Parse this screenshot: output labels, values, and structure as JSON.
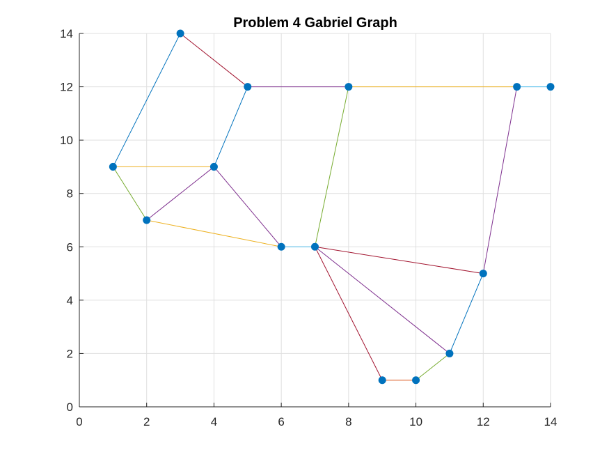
{
  "chart_data": {
    "type": "scatter",
    "title": "Problem 4 Gabriel Graph",
    "xlabel": "",
    "ylabel": "",
    "xlim": [
      0,
      14
    ],
    "ylim": [
      0,
      14
    ],
    "xticks": [
      0,
      2,
      4,
      6,
      8,
      10,
      12,
      14
    ],
    "yticks": [
      0,
      2,
      4,
      6,
      8,
      10,
      12,
      14
    ],
    "grid": true,
    "box": "left-bottom",
    "marker_color": "#0072BD",
    "points": [
      [
        1,
        9
      ],
      [
        2,
        7
      ],
      [
        3,
        14
      ],
      [
        4,
        9
      ],
      [
        5,
        12
      ],
      [
        6,
        6
      ],
      [
        7,
        6
      ],
      [
        8,
        12
      ],
      [
        9,
        1
      ],
      [
        10,
        1
      ],
      [
        11,
        2
      ],
      [
        12,
        5
      ],
      [
        13,
        12
      ],
      [
        14,
        12
      ]
    ],
    "edges": [
      {
        "from": [
          3,
          14
        ],
        "to": [
          1,
          9
        ],
        "color": "#0072BD"
      },
      {
        "from": [
          3,
          14
        ],
        "to": [
          5,
          12
        ],
        "color": "#A2142F"
      },
      {
        "from": [
          5,
          12
        ],
        "to": [
          8,
          12
        ],
        "color": "#7E2F8E"
      },
      {
        "from": [
          5,
          12
        ],
        "to": [
          4,
          9
        ],
        "color": "#0072BD"
      },
      {
        "from": [
          8,
          12
        ],
        "to": [
          13,
          12
        ],
        "color": "#EDB120"
      },
      {
        "from": [
          13,
          12
        ],
        "to": [
          14,
          12
        ],
        "color": "#4DBEEE"
      },
      {
        "from": [
          1,
          9
        ],
        "to": [
          4,
          9
        ],
        "color": "#EDB120"
      },
      {
        "from": [
          1,
          9
        ],
        "to": [
          2,
          7
        ],
        "color": "#77AC30"
      },
      {
        "from": [
          2,
          7
        ],
        "to": [
          4,
          9
        ],
        "color": "#7E2F8E"
      },
      {
        "from": [
          2,
          7
        ],
        "to": [
          6,
          6
        ],
        "color": "#EDB120"
      },
      {
        "from": [
          4,
          9
        ],
        "to": [
          6,
          6
        ],
        "color": "#7E2F8E"
      },
      {
        "from": [
          6,
          6
        ],
        "to": [
          7,
          6
        ],
        "color": "#4DBEEE"
      },
      {
        "from": [
          7,
          6
        ],
        "to": [
          8,
          12
        ],
        "color": "#77AC30"
      },
      {
        "from": [
          7,
          6
        ],
        "to": [
          12,
          5
        ],
        "color": "#A2142F"
      },
      {
        "from": [
          7,
          6
        ],
        "to": [
          11,
          2
        ],
        "color": "#7E2F8E"
      },
      {
        "from": [
          7,
          6
        ],
        "to": [
          9,
          1
        ],
        "color": "#A2142F"
      },
      {
        "from": [
          9,
          1
        ],
        "to": [
          10,
          1
        ],
        "color": "#D95319"
      },
      {
        "from": [
          10,
          1
        ],
        "to": [
          11,
          2
        ],
        "color": "#77AC30"
      },
      {
        "from": [
          11,
          2
        ],
        "to": [
          12,
          5
        ],
        "color": "#0072BD"
      },
      {
        "from": [
          12,
          5
        ],
        "to": [
          13,
          12
        ],
        "color": "#7E2F8E"
      }
    ]
  }
}
